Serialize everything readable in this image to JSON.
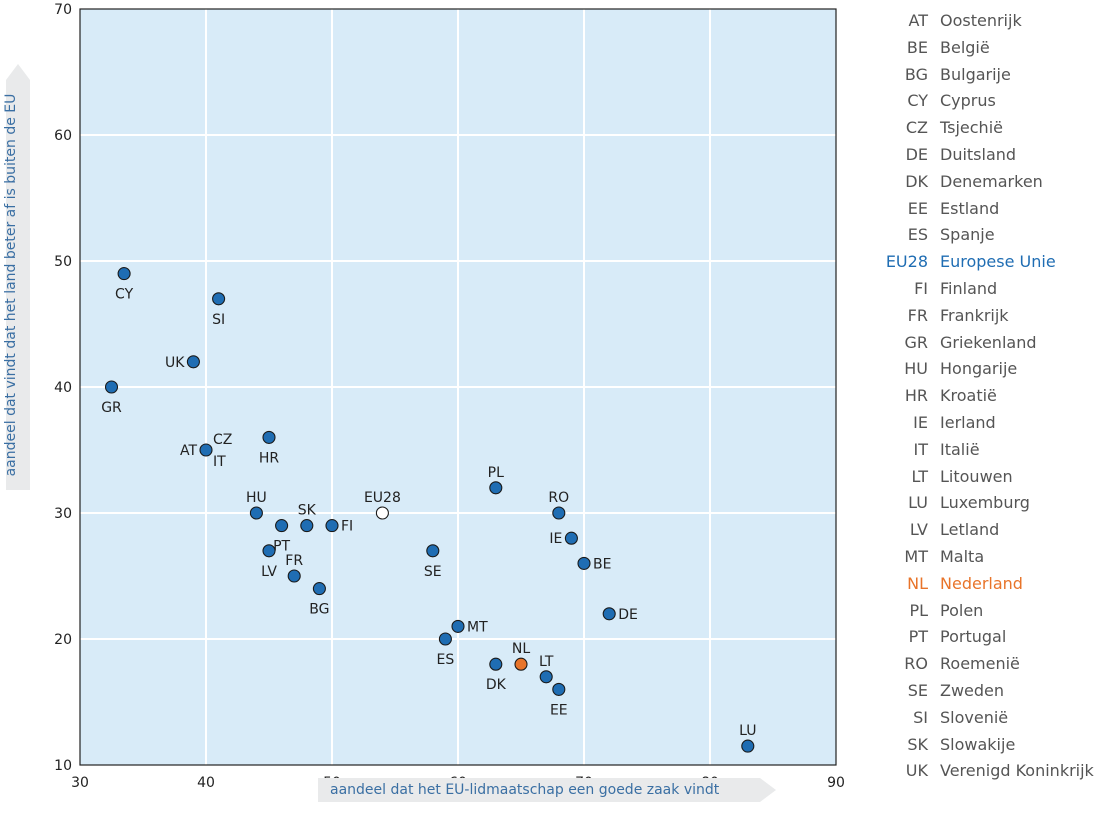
{
  "chart_data": {
    "type": "scatter",
    "title": "",
    "xlabel": "aandeel dat het EU-lidmaatschap een goede zaak vindt",
    "ylabel": "aandeel dat vindt dat het land beter af is buiten de EU",
    "xlim": [
      30,
      90
    ],
    "ylim": [
      10,
      70
    ],
    "xticks": [
      "30",
      "40",
      "50",
      "60",
      "70",
      "80",
      "90"
    ],
    "yticks": [
      "10",
      "20",
      "30",
      "40",
      "50",
      "60",
      "70"
    ],
    "grid": true,
    "colors": {
      "point": "#1f6db3",
      "eu": "#ffffff",
      "nl": "#e8742a",
      "plot_bg": "#d8ebf8"
    },
    "points": [
      {
        "code": "CY",
        "x": 33.5,
        "y": 49,
        "kind": "normal",
        "anchor": "below"
      },
      {
        "code": "SI",
        "x": 41,
        "y": 47,
        "kind": "normal",
        "anchor": "below"
      },
      {
        "code": "UK",
        "x": 39,
        "y": 42,
        "kind": "normal",
        "anchor": "left"
      },
      {
        "code": "GR",
        "x": 32.5,
        "y": 40,
        "kind": "normal",
        "anchor": "below"
      },
      {
        "code": "AT",
        "x": 40,
        "y": 35,
        "kind": "normal",
        "anchor": "left"
      },
      {
        "code": "CZ",
        "x": 40,
        "y": 35,
        "kind": "normal",
        "anchor": "upright"
      },
      {
        "code": "IT",
        "x": 40,
        "y": 35,
        "kind": "normal",
        "anchor": "downright"
      },
      {
        "code": "HR",
        "x": 45,
        "y": 36,
        "kind": "normal",
        "anchor": "below"
      },
      {
        "code": "HU",
        "x": 44,
        "y": 30,
        "kind": "normal",
        "anchor": "above"
      },
      {
        "code": "PT",
        "x": 46,
        "y": 29,
        "kind": "normal",
        "anchor": "below"
      },
      {
        "code": "SK",
        "x": 48,
        "y": 29,
        "kind": "normal",
        "anchor": "above"
      },
      {
        "code": "FI",
        "x": 50,
        "y": 29,
        "kind": "normal",
        "anchor": "right"
      },
      {
        "code": "LV",
        "x": 45,
        "y": 27,
        "kind": "normal",
        "anchor": "below"
      },
      {
        "code": "FR",
        "x": 47,
        "y": 25,
        "kind": "normal",
        "anchor": "above"
      },
      {
        "code": "BG",
        "x": 49,
        "y": 24,
        "kind": "normal",
        "anchor": "below"
      },
      {
        "code": "EU28",
        "x": 54,
        "y": 30,
        "kind": "eu",
        "anchor": "above"
      },
      {
        "code": "SE",
        "x": 58,
        "y": 27,
        "kind": "normal",
        "anchor": "below"
      },
      {
        "code": "PL",
        "x": 63,
        "y": 32,
        "kind": "normal",
        "anchor": "above"
      },
      {
        "code": "RO",
        "x": 68,
        "y": 30,
        "kind": "normal",
        "anchor": "above"
      },
      {
        "code": "IE",
        "x": 69,
        "y": 28,
        "kind": "normal",
        "anchor": "left"
      },
      {
        "code": "BE",
        "x": 70,
        "y": 26,
        "kind": "normal",
        "anchor": "right"
      },
      {
        "code": "DE",
        "x": 72,
        "y": 22,
        "kind": "normal",
        "anchor": "right"
      },
      {
        "code": "MT",
        "x": 60,
        "y": 21,
        "kind": "normal",
        "anchor": "right"
      },
      {
        "code": "ES",
        "x": 59,
        "y": 20,
        "kind": "normal",
        "anchor": "below"
      },
      {
        "code": "DK",
        "x": 63,
        "y": 18,
        "kind": "normal",
        "anchor": "below"
      },
      {
        "code": "NL",
        "x": 65,
        "y": 18,
        "kind": "nl",
        "anchor": "above"
      },
      {
        "code": "LT",
        "x": 67,
        "y": 17,
        "kind": "normal",
        "anchor": "above"
      },
      {
        "code": "EE",
        "x": 68,
        "y": 16,
        "kind": "normal",
        "anchor": "below"
      },
      {
        "code": "LU",
        "x": 83,
        "y": 11.5,
        "kind": "normal",
        "anchor": "above"
      }
    ]
  },
  "legend": [
    {
      "code": "AT",
      "name": "Oostenrijk",
      "kind": "normal"
    },
    {
      "code": "BE",
      "name": "België",
      "kind": "normal"
    },
    {
      "code": "BG",
      "name": "Bulgarije",
      "kind": "normal"
    },
    {
      "code": "CY",
      "name": "Cyprus",
      "kind": "normal"
    },
    {
      "code": "CZ",
      "name": "Tsjechië",
      "kind": "normal"
    },
    {
      "code": "DE",
      "name": "Duitsland",
      "kind": "normal"
    },
    {
      "code": "DK",
      "name": "Denemarken",
      "kind": "normal"
    },
    {
      "code": "EE",
      "name": "Estland",
      "kind": "normal"
    },
    {
      "code": "ES",
      "name": "Spanje",
      "kind": "normal"
    },
    {
      "code": "EU28",
      "name": "Europese Unie",
      "kind": "eu"
    },
    {
      "code": "FI",
      "name": "Finland",
      "kind": "normal"
    },
    {
      "code": "FR",
      "name": "Frankrijk",
      "kind": "normal"
    },
    {
      "code": "GR",
      "name": "Griekenland",
      "kind": "normal"
    },
    {
      "code": "HU",
      "name": "Hongarije",
      "kind": "normal"
    },
    {
      "code": "HR",
      "name": "Kroatië",
      "kind": "normal"
    },
    {
      "code": "IE",
      "name": "Ierland",
      "kind": "normal"
    },
    {
      "code": "IT",
      "name": "Italië",
      "kind": "normal"
    },
    {
      "code": "LT",
      "name": "Litouwen",
      "kind": "normal"
    },
    {
      "code": "LU",
      "name": "Luxemburg",
      "kind": "normal"
    },
    {
      "code": "LV",
      "name": "Letland",
      "kind": "normal"
    },
    {
      "code": "MT",
      "name": "Malta",
      "kind": "normal"
    },
    {
      "code": "NL",
      "name": "Nederland",
      "kind": "nl"
    },
    {
      "code": "PL",
      "name": "Polen",
      "kind": "normal"
    },
    {
      "code": "PT",
      "name": "Portugal",
      "kind": "normal"
    },
    {
      "code": "RO",
      "name": "Roemenië",
      "kind": "normal"
    },
    {
      "code": "SE",
      "name": "Zweden",
      "kind": "normal"
    },
    {
      "code": "SI",
      "name": "Slovenië",
      "kind": "normal"
    },
    {
      "code": "SK",
      "name": "Slowakije",
      "kind": "normal"
    },
    {
      "code": "UK",
      "name": "Verenigd Koninkrijk",
      "kind": "normal"
    }
  ],
  "legend_colors": {
    "normal": "#555555",
    "eu": "#1f6db3",
    "nl": "#e8742a"
  }
}
